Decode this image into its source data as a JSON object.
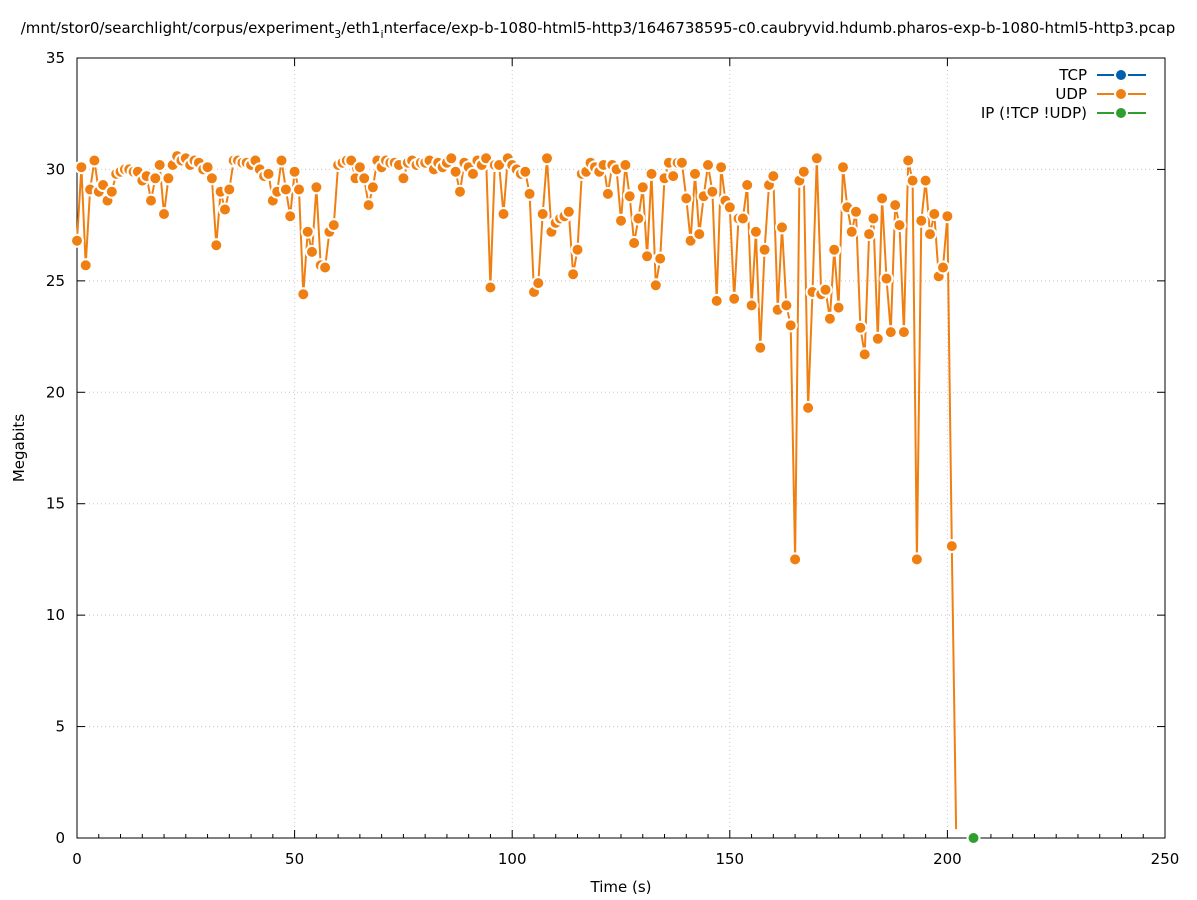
{
  "chart_data": {
    "type": "line",
    "title": "/mnt/stor0/searchlight/corpus/experiment_3/eth1_interface/exp-b-1080-html5-http3/1646738595-c0.caubryvid.hdumb.pharos-exp-b-1080-html5-http3.pcap",
    "title_parts": {
      "a": "/mnt/stor0/searchlight/corpus/experiment",
      "sub1": "3",
      "b": "/eth1",
      "sub2": "i",
      "c": "nterface/exp-b-1080-html5-http3/1646738595-c0.caubryvid.hdumb.pharos-exp-b-1080-html5-http3.pcap"
    },
    "xlabel": "Time (s)",
    "ylabel": "Megabits",
    "xlim": [
      0,
      250
    ],
    "ylim": [
      0,
      35
    ],
    "xticks": [
      "0",
      "50",
      "100",
      "150",
      "200",
      "250"
    ],
    "yticks": [
      "0",
      "5",
      "10",
      "15",
      "20",
      "25",
      "30",
      "35"
    ],
    "grid": true,
    "legend_position": "top-right",
    "series": [
      {
        "name": "TCP",
        "color": "#0060ad",
        "x": [],
        "y": []
      },
      {
        "name": "UDP",
        "color": "#f07f12",
        "x": [
          0,
          1,
          2,
          3,
          4,
          5,
          6,
          7,
          8,
          9,
          10,
          11,
          12,
          13,
          14,
          15,
          16,
          17,
          18,
          19,
          20,
          21,
          22,
          23,
          24,
          25,
          26,
          27,
          28,
          29,
          30,
          31,
          32,
          33,
          34,
          35,
          36,
          37,
          38,
          39,
          40,
          41,
          42,
          43,
          44,
          45,
          46,
          47,
          48,
          49,
          50,
          51,
          52,
          53,
          54,
          55,
          56,
          57,
          58,
          59,
          60,
          61,
          62,
          63,
          64,
          65,
          66,
          67,
          68,
          69,
          70,
          71,
          72,
          73,
          74,
          75,
          76,
          77,
          78,
          79,
          80,
          81,
          82,
          83,
          84,
          85,
          86,
          87,
          88,
          89,
          90,
          91,
          92,
          93,
          94,
          95,
          96,
          97,
          98,
          99,
          100,
          101,
          102,
          103,
          104,
          105,
          106,
          107,
          108,
          109,
          110,
          111,
          112,
          113,
          114,
          115,
          116,
          117,
          118,
          119,
          120,
          121,
          122,
          123,
          124,
          125,
          126,
          127,
          128,
          129,
          130,
          131,
          132,
          133,
          134,
          135,
          136,
          137,
          138,
          139,
          140,
          141,
          142,
          143,
          144,
          145,
          146,
          147,
          148,
          149,
          150,
          151,
          152,
          153,
          154,
          155,
          156,
          157,
          158,
          159,
          160,
          161,
          162,
          163,
          164,
          165,
          166,
          167,
          168,
          169,
          170,
          171,
          172,
          173,
          174,
          175,
          176,
          177,
          178,
          179,
          180,
          181,
          182,
          183,
          184,
          185,
          186,
          187,
          188,
          189,
          190,
          191,
          192,
          193,
          194,
          195,
          196,
          197,
          198,
          199,
          200,
          201,
          202
        ],
        "y": [
          26.8,
          30.1,
          25.7,
          29.1,
          30.4,
          29.0,
          29.3,
          28.6,
          29.0,
          29.8,
          29.9,
          30.0,
          30.0,
          29.9,
          29.9,
          29.5,
          29.7,
          28.6,
          29.6,
          30.2,
          28.0,
          29.6,
          30.2,
          30.6,
          30.4,
          30.5,
          30.2,
          30.4,
          30.3,
          30.0,
          30.1,
          29.6,
          26.6,
          29.0,
          28.2,
          29.1,
          30.4,
          30.4,
          30.3,
          30.3,
          30.2,
          30.4,
          30.0,
          29.7,
          29.8,
          28.6,
          29.0,
          30.4,
          29.1,
          27.9,
          29.9,
          29.1,
          24.4,
          27.2,
          26.3,
          29.2,
          25.7,
          25.6,
          27.2,
          27.5,
          30.2,
          30.3,
          30.4,
          30.4,
          29.6,
          30.1,
          29.6,
          28.4,
          29.2,
          30.4,
          30.1,
          30.4,
          30.3,
          30.3,
          30.2,
          29.6,
          30.3,
          30.4,
          30.2,
          30.3,
          30.3,
          30.4,
          30.0,
          30.3,
          30.1,
          30.3,
          30.5,
          29.9,
          29.0,
          30.3,
          30.1,
          29.8,
          30.4,
          30.2,
          30.5,
          24.7,
          30.2,
          30.2,
          28.0,
          30.5,
          30.2,
          30.0,
          29.8,
          29.9,
          28.9,
          24.5,
          24.9,
          28.0,
          30.5,
          27.2,
          27.6,
          27.8,
          27.9,
          28.1,
          25.3,
          26.4,
          29.8,
          29.9,
          30.3,
          30.1,
          29.9,
          30.2,
          28.9,
          30.2,
          30.0,
          27.7,
          30.2,
          28.8,
          26.7,
          27.8,
          29.2,
          26.1,
          29.8,
          24.8,
          26.0,
          29.6,
          30.3,
          29.7,
          30.3,
          30.3,
          28.7,
          26.8,
          29.8,
          27.1,
          28.8,
          30.2,
          29.0,
          24.1,
          30.1,
          28.6,
          28.3,
          24.2,
          27.8,
          27.8,
          29.3,
          23.9,
          27.2,
          22.0,
          26.4,
          29.3,
          29.7,
          23.7,
          27.4,
          23.9,
          23.0,
          12.5,
          29.5,
          29.9,
          19.3,
          24.5,
          30.5,
          24.4,
          24.6,
          23.3,
          26.4,
          23.8,
          30.1,
          28.3,
          27.2,
          28.1,
          22.9,
          21.7,
          27.1,
          27.8,
          22.4,
          28.7,
          25.1,
          22.7,
          28.4,
          27.5,
          22.7,
          30.4,
          29.5,
          12.5,
          27.7,
          29.5,
          27.1,
          28.0,
          25.2,
          25.6,
          27.9,
          13.1,
          0.4
        ]
      },
      {
        "name": "IP (!TCP  !UDP)",
        "color": "#2e9e2e",
        "x": [
          206
        ],
        "y": [
          0
        ]
      }
    ]
  }
}
